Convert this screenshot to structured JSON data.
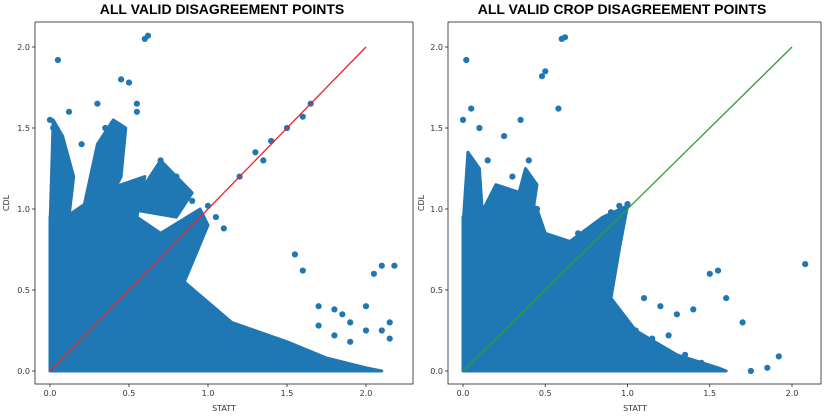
{
  "chart_data": [
    {
      "type": "scatter",
      "title": "ALL VALID DISAGREEMENT POINTS",
      "xlabel": "STATT",
      "ylabel": "CDL",
      "xlim": [
        -0.05,
        2.2
      ],
      "ylim": [
        -0.02,
        2.1
      ],
      "xticks": [
        "0.0",
        "0.5",
        "1.0",
        "1.5",
        "2.0"
      ],
      "yticks": [
        "0.0",
        "0.5",
        "1.0",
        "1.5",
        "2.0"
      ],
      "grid": false,
      "point_color": "#1f77b4",
      "reference_line": {
        "x": [
          0,
          2
        ],
        "y": [
          0,
          2
        ],
        "color": "#e8262b"
      },
      "series": [
        {
          "x": [
            0.05,
            0.12,
            0.2,
            0.3,
            0.35,
            0.45,
            0.5,
            0.55,
            0.6,
            0.62,
            0.7,
            0.8,
            0.9,
            1.0,
            1.05,
            1.1,
            1.2,
            1.3,
            1.35,
            1.4,
            1.5,
            1.6,
            1.65,
            1.7,
            1.8,
            1.85,
            1.9,
            2.0,
            2.05,
            2.1,
            2.15,
            2.18,
            0.0,
            0.02,
            0.05,
            0.25,
            0.33,
            0.38,
            0.42,
            0.5,
            0.55,
            0.62,
            0.65,
            0.85,
            0.95,
            1.25,
            1.35,
            1.5,
            1.55,
            1.6,
            1.7,
            1.8,
            1.9,
            2.0,
            2.1,
            2.15,
            1.3,
            1.2,
            1.1,
            0.8,
            0.6
          ],
          "y": [
            1.92,
            1.6,
            1.4,
            1.65,
            1.5,
            1.8,
            1.78,
            1.6,
            2.05,
            2.07,
            1.3,
            1.2,
            1.05,
            1.02,
            0.95,
            0.88,
            1.2,
            1.35,
            1.3,
            1.42,
            1.5,
            1.57,
            1.65,
            0.4,
            0.38,
            0.35,
            0.3,
            0.25,
            0.6,
            0.65,
            0.3,
            0.65,
            1.55,
            1.5,
            1.45,
            1.1,
            0.9,
            0.85,
            0.7,
            0.6,
            1.65,
            1.0,
            0.5,
            0.45,
            0.3,
            0.2,
            0.15,
            0.1,
            0.72,
            0.62,
            0.28,
            0.22,
            0.18,
            0.4,
            0.25,
            0.2,
            0.05,
            0.03,
            0.02,
            0.15,
            0.1
          ]
        }
      ]
    },
    {
      "type": "scatter",
      "title": "ALL VALID CROP DISAGREEMENT POINTS",
      "xlabel": "STATT",
      "ylabel": "CDL",
      "xlim": [
        -0.05,
        2.2
      ],
      "ylim": [
        -0.02,
        2.1
      ],
      "xticks": [
        "0.0",
        "0.5",
        "1.0",
        "1.5",
        "2.0"
      ],
      "yticks": [
        "0.0",
        "0.5",
        "1.0",
        "1.5",
        "2.0"
      ],
      "grid": false,
      "point_color": "#1f77b4",
      "reference_line": {
        "x": [
          0,
          2
        ],
        "y": [
          0,
          2
        ],
        "color": "#2ca02c"
      },
      "series": [
        {
          "x": [
            0.02,
            0.05,
            0.1,
            0.15,
            0.25,
            0.3,
            0.35,
            0.4,
            0.45,
            0.5,
            0.6,
            0.62,
            0.7,
            0.8,
            0.9,
            0.95,
            1.0,
            1.1,
            1.2,
            1.3,
            1.4,
            1.5,
            1.55,
            1.6,
            1.7,
            1.75,
            1.85,
            1.92,
            2.08,
            0.0,
            0.55,
            0.65,
            0.75,
            0.85,
            1.05,
            1.15,
            1.25,
            1.35,
            1.45,
            0.48,
            0.58
          ],
          "y": [
            1.92,
            1.62,
            1.5,
            1.3,
            1.45,
            1.2,
            1.55,
            1.3,
            1.0,
            1.85,
            2.05,
            2.06,
            0.85,
            0.9,
            0.98,
            1.02,
            1.03,
            0.45,
            0.4,
            0.35,
            0.38,
            0.6,
            0.62,
            0.45,
            0.3,
            0.0,
            0.02,
            0.09,
            0.66,
            1.55,
            0.75,
            0.55,
            0.62,
            0.65,
            0.25,
            0.2,
            0.22,
            0.1,
            0.05,
            1.82,
            1.62
          ]
        }
      ]
    }
  ]
}
